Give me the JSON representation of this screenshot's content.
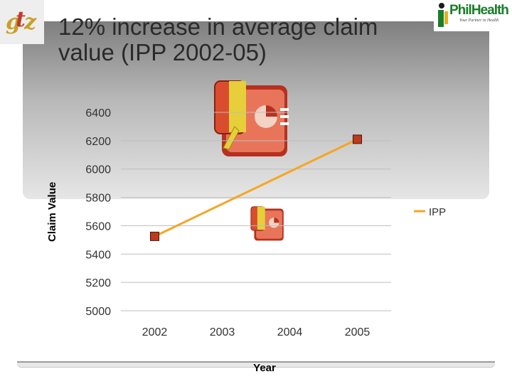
{
  "slide": {
    "title": "12% increase in average claim value (IPP 2002-05)"
  },
  "logos": {
    "left_text": "gtz",
    "right_name": "PhilHealth",
    "right_tagline": "Your Partner in Health"
  },
  "colors": {
    "line": "#f5a623",
    "marker_fill": "#c0391b",
    "marker_stroke": "#3a1a10",
    "grid": "#bdbdbd"
  },
  "chart_data": {
    "type": "line",
    "title": "12% increase in average claim value (IPP 2002-05)",
    "xlabel": "Year",
    "ylabel": "Claim Value",
    "categories": [
      "2002",
      "2003",
      "2004",
      "2005"
    ],
    "series": [
      {
        "name": "IPP",
        "values": [
          5525,
          null,
          null,
          6210
        ]
      }
    ],
    "ylim": [
      5000,
      6400
    ],
    "yticks": [
      5000,
      5200,
      5400,
      5600,
      5800,
      6000,
      6200,
      6400
    ],
    "grid": true,
    "legend": "right"
  },
  "clipart": [
    "presentation-clipart-icon",
    "presentation-clipart-icon"
  ]
}
